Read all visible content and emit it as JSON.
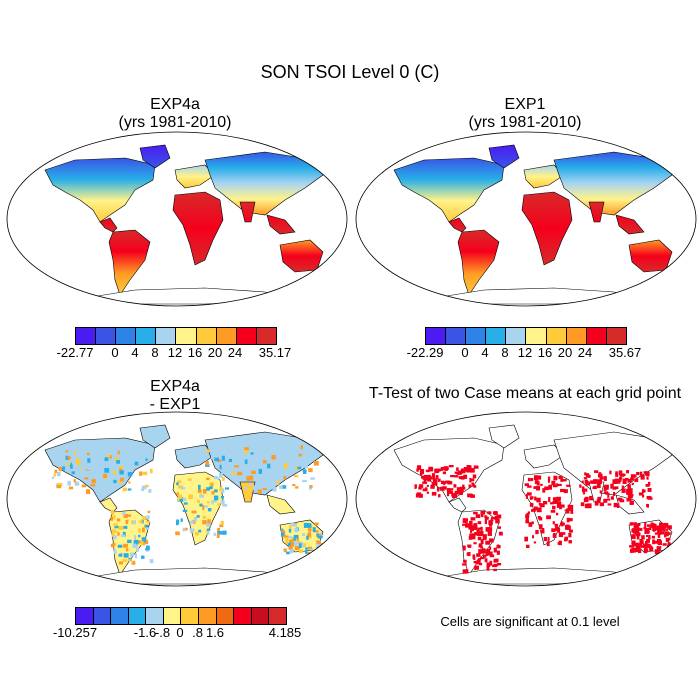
{
  "figure": {
    "title": "SON TSOI Level 0 (C)",
    "panels": [
      {
        "title_line1": "EXP4a",
        "title_line2": "(yrs 1981-2010)"
      },
      {
        "title_line1": "EXP1",
        "title_line2": "(yrs 1981-2010)"
      },
      {
        "title_line1": "EXP4a",
        "title_line2": "- EXP1"
      },
      {
        "title_line1": "T-Test of two Case means at each grid point",
        "title_line2": ""
      }
    ],
    "colorbars": [
      {
        "labels": [
          "-22.77",
          "0",
          "4",
          "8",
          "12",
          "16",
          "20",
          "24",
          "35.17"
        ],
        "colors": [
          "#4b1cf2",
          "#3a55e6",
          "#2f83e8",
          "#27aee8",
          "#a9d4f0",
          "#fff38a",
          "#ffcb3a",
          "#ff9b24",
          "#f5001c",
          "#d72a2a"
        ]
      },
      {
        "labels": [
          "-22.29",
          "0",
          "4",
          "8",
          "12",
          "16",
          "20",
          "24",
          "35.67"
        ],
        "colors": [
          "#4b1cf2",
          "#3a55e6",
          "#2f83e8",
          "#27aee8",
          "#a9d4f0",
          "#fff38a",
          "#ffcb3a",
          "#ff9b24",
          "#f5001c",
          "#d72a2a"
        ]
      },
      {
        "labels": [
          "-10.257",
          "-1.6",
          "-.8",
          "0",
          ".8",
          "1.6",
          "4.185"
        ],
        "colors": [
          "#4b1cf2",
          "#3a55e6",
          "#2f83e8",
          "#27aee8",
          "#a9d4f0",
          "#fff38a",
          "#ffcb3a",
          "#ff9b24",
          "#f06a14",
          "#f5001c",
          "#c80e1e",
          "#d72a2a"
        ]
      }
    ],
    "significance_note": "Cells are significant at 0.1 level"
  }
}
